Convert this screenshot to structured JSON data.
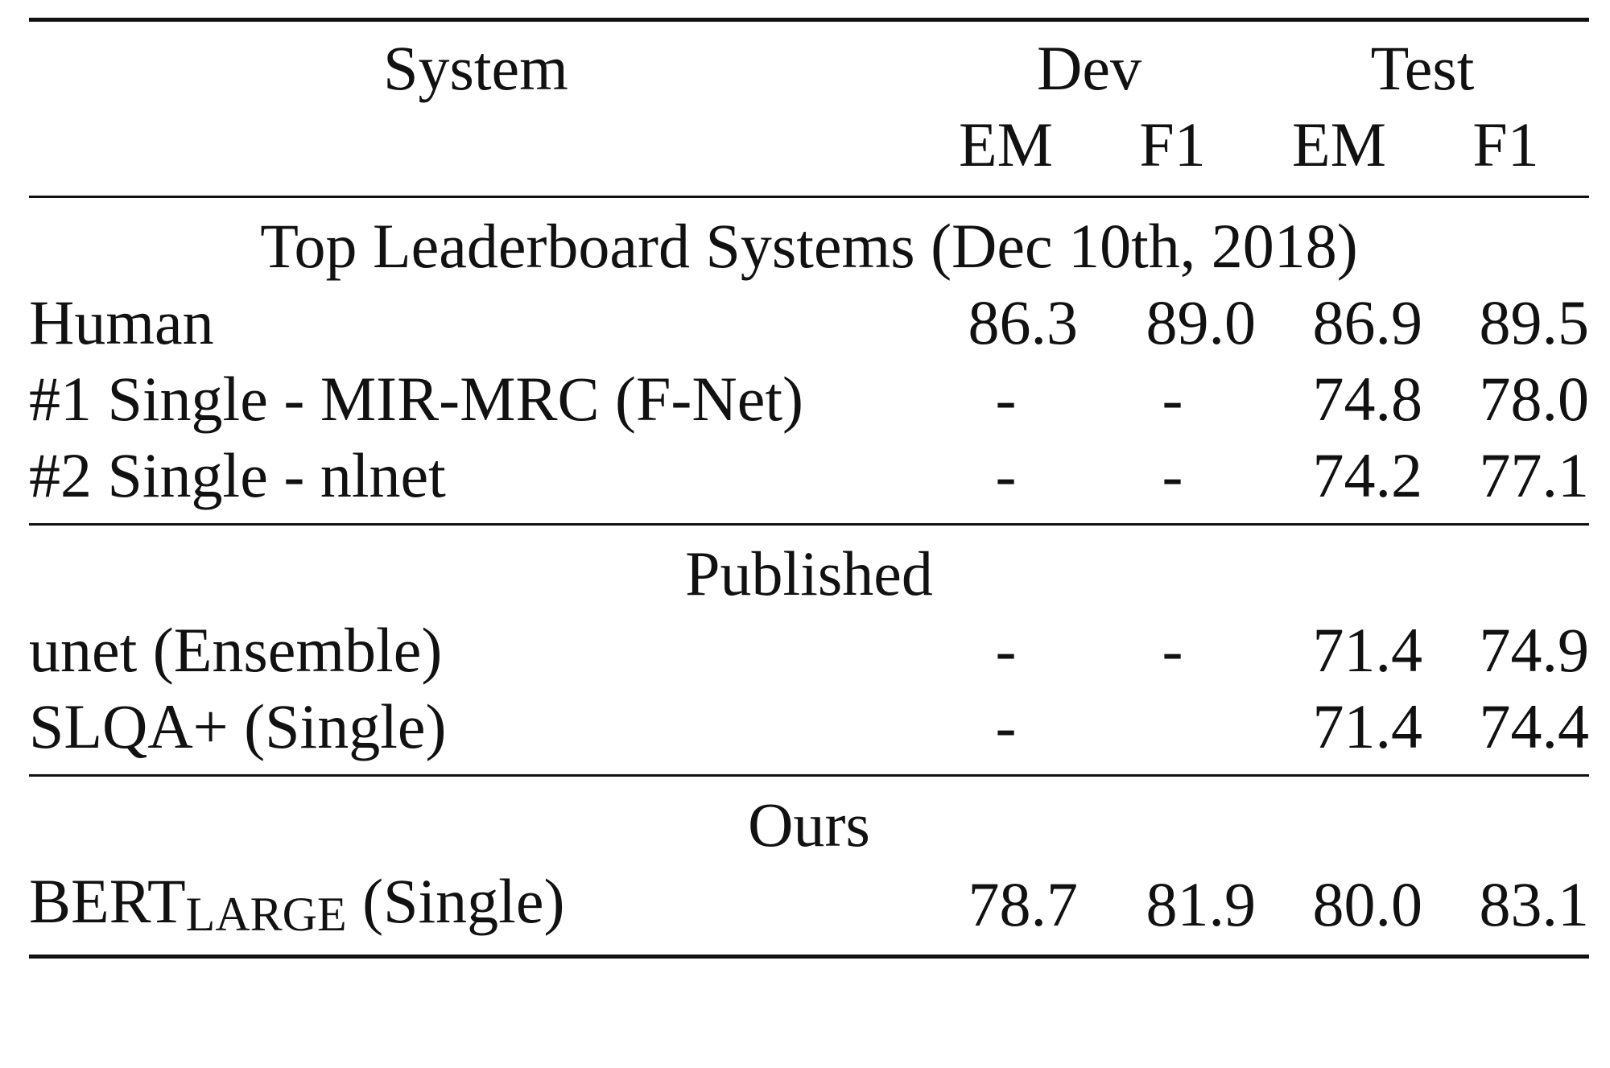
{
  "header": {
    "system": "System",
    "dev": "Dev",
    "test": "Test",
    "dev_em": "EM",
    "dev_f1": "F1",
    "test_em": "EM",
    "test_f1": "F1"
  },
  "sections": [
    {
      "title": "Top Leaderboard Systems (Dec 10th, 2018)",
      "rows": [
        {
          "system": "Human",
          "dev_em": "86.3",
          "dev_f1": "89.0",
          "test_em": "86.9",
          "test_f1": "89.5"
        },
        {
          "system": "#1 Single - MIR-MRC (F-Net)",
          "dev_em": "-",
          "dev_f1": "-",
          "test_em": "74.8",
          "test_f1": "78.0"
        },
        {
          "system": "#2 Single - nlnet",
          "dev_em": "-",
          "dev_f1": "-",
          "test_em": "74.2",
          "test_f1": "77.1"
        }
      ]
    },
    {
      "title": "Published",
      "rows": [
        {
          "system": "unet (Ensemble)",
          "dev_em": "-",
          "dev_f1": "-",
          "test_em": "71.4",
          "test_f1": "74.9"
        },
        {
          "system": "SLQA+ (Single)",
          "dev_em": "-",
          "dev_f1": "",
          "test_em": "71.4",
          "test_f1": "74.4"
        }
      ]
    },
    {
      "title": "Ours",
      "rows": [
        {
          "system_main": "BERT",
          "system_sub": "LARGE",
          "system_rest": " (Single)",
          "dev_em": "78.7",
          "dev_f1": "81.9",
          "test_em": "80.0",
          "test_f1": "83.1"
        }
      ]
    }
  ]
}
